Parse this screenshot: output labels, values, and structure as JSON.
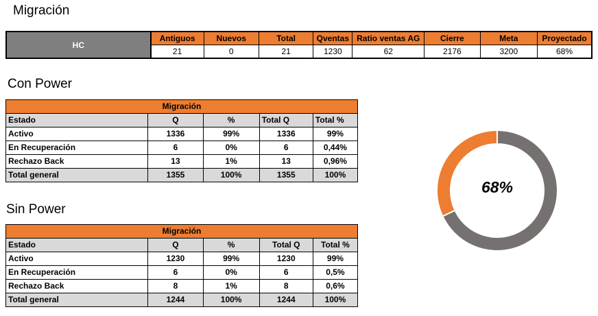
{
  "title": "Migración",
  "summary": {
    "row_label": "HC",
    "headers": [
      "Antiguos",
      "Nuevos",
      "Total",
      "Qventas",
      "Ratio ventas AG",
      "Cierre",
      "Meta",
      "Proyectado"
    ],
    "values": [
      "21",
      "0",
      "21",
      "1230",
      "62",
      "2176",
      "3200",
      "68%"
    ]
  },
  "con_power": {
    "heading": "Con Power",
    "table_title": "Migración",
    "headers": [
      "Estado",
      "Q",
      "%",
      "Total Q",
      "Total %"
    ],
    "rows": [
      [
        "Activo",
        "1336",
        "99%",
        "1336",
        "99%"
      ],
      [
        "En Recuperación",
        "6",
        "0%",
        "6",
        "0,44%"
      ],
      [
        "Rechazo Back",
        "13",
        "1%",
        "13",
        "0,96%"
      ]
    ],
    "total": [
      "Total general",
      "1355",
      "100%",
      "1355",
      "100%"
    ]
  },
  "sin_power": {
    "heading": "Sin Power",
    "table_title": "Migración",
    "headers": [
      "Estado",
      "Q",
      "%",
      "Total Q",
      "Total %"
    ],
    "rows": [
      [
        "Activo",
        "1230",
        "99%",
        "1230",
        "99%"
      ],
      [
        "En Recuperación",
        "6",
        "0%",
        "6",
        "0,5%"
      ],
      [
        "Rechazo Back",
        "8",
        "1%",
        "8",
        "0,6%"
      ]
    ],
    "total": [
      "Total general",
      "1244",
      "100%",
      "1244",
      "100%"
    ]
  },
  "donut": {
    "label": "68%",
    "orange_fraction": 0.32,
    "colors": {
      "orange": "#ed7d31",
      "grey": "#767171"
    }
  }
}
